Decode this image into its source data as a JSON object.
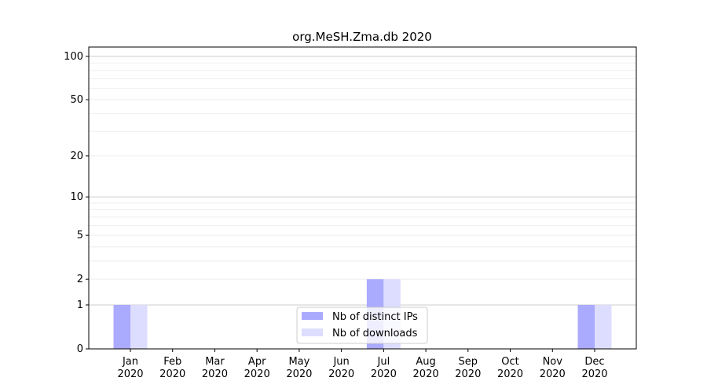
{
  "chart_data": {
    "type": "bar",
    "title": "org.MeSH.Zma.db 2020",
    "xlabel": "",
    "ylabel": "",
    "yscale": "symlog (log of 1+y)",
    "ylim": [
      0,
      116
    ],
    "yticks": [
      0,
      1,
      2,
      5,
      10,
      20,
      50,
      100
    ],
    "categories": [
      "Jan\n2020",
      "Feb\n2020",
      "Mar\n2020",
      "Apr\n2020",
      "May\n2020",
      "Jun\n2020",
      "Jul\n2020",
      "Aug\n2020",
      "Sep\n2020",
      "Oct\n2020",
      "Nov\n2020",
      "Dec\n2020"
    ],
    "series": [
      {
        "name": "Nb of distinct IPs",
        "color": "#aaaaff",
        "values": [
          1,
          0,
          0,
          0,
          0,
          0,
          2,
          0,
          0,
          0,
          0,
          1
        ]
      },
      {
        "name": "Nb of downloads",
        "color": "#ddddff",
        "values": [
          1,
          0,
          0,
          0,
          0,
          0,
          2,
          0,
          0,
          0,
          0,
          1
        ]
      }
    ],
    "grid": true,
    "legend": "bottom-center"
  }
}
